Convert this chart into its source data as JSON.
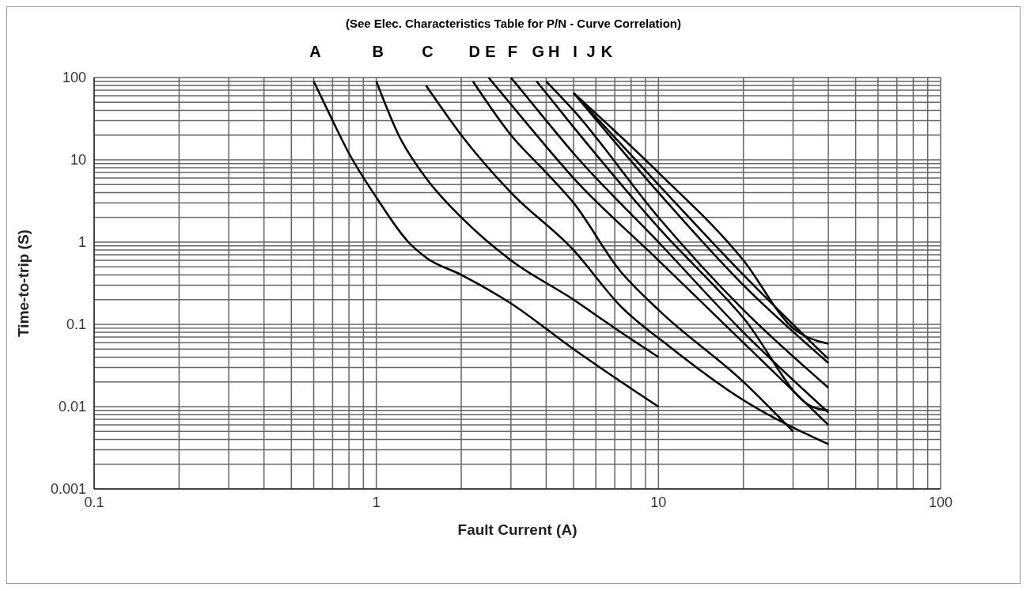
{
  "chart_data": {
    "type": "line",
    "title": "(See Elec. Characteristics Table for P/N - Curve Correlation)",
    "xlabel": "Fault Current (A)",
    "ylabel": "Time-to-trip (S)",
    "log": "xy",
    "grid": true,
    "legend": false,
    "xlim": [
      0.1,
      100
    ],
    "ylim": [
      0.001,
      100
    ],
    "xticks": [
      0.1,
      {
        "value": 0.2,
        "label": null
      },
      {
        "value": 0.3,
        "label": null
      },
      {
        "value": 0.4,
        "label": null
      },
      {
        "value": 0.5,
        "label": null
      },
      {
        "value": 0.6,
        "label": null
      },
      {
        "value": 0.7,
        "label": null
      },
      {
        "value": 0.8,
        "label": null
      },
      {
        "value": 0.9,
        "label": null
      },
      1,
      {
        "value": 2,
        "label": null
      },
      {
        "value": 3,
        "label": null
      },
      {
        "value": 4,
        "label": null
      },
      {
        "value": 5,
        "label": null
      },
      {
        "value": 6,
        "label": null
      },
      {
        "value": 7,
        "label": null
      },
      {
        "value": 8,
        "label": null
      },
      {
        "value": 9,
        "label": null
      },
      10,
      {
        "value": 20,
        "label": null
      },
      {
        "value": 30,
        "label": null
      },
      {
        "value": 40,
        "label": null
      },
      {
        "value": 50,
        "label": null
      },
      {
        "value": 60,
        "label": null
      },
      {
        "value": 70,
        "label": null
      },
      {
        "value": 80,
        "label": null
      },
      {
        "value": 90,
        "label": null
      },
      100
    ],
    "yticks": [
      0.001,
      {
        "value": 0.002,
        "label": null
      },
      {
        "value": 0.003,
        "label": null
      },
      {
        "value": 0.004,
        "label": null
      },
      {
        "value": 0.005,
        "label": null
      },
      {
        "value": 0.006,
        "label": null
      },
      {
        "value": 0.007,
        "label": null
      },
      {
        "value": 0.008,
        "label": null
      },
      {
        "value": 0.009,
        "label": null
      },
      0.01,
      {
        "value": 0.02,
        "label": null
      },
      {
        "value": 0.03,
        "label": null
      },
      {
        "value": 0.04,
        "label": null
      },
      {
        "value": 0.05,
        "label": null
      },
      {
        "value": 0.06,
        "label": null
      },
      {
        "value": 0.07,
        "label": null
      },
      {
        "value": 0.08,
        "label": null
      },
      {
        "value": 0.09,
        "label": null
      },
      0.1,
      {
        "value": 0.2,
        "label": null
      },
      {
        "value": 0.3,
        "label": null
      },
      {
        "value": 0.4,
        "label": null
      },
      {
        "value": 0.5,
        "label": null
      },
      {
        "value": 0.6,
        "label": null
      },
      {
        "value": 0.7,
        "label": null
      },
      {
        "value": 0.8,
        "label": null
      },
      {
        "value": 0.9,
        "label": null
      },
      1,
      {
        "value": 2,
        "label": null
      },
      {
        "value": 3,
        "label": null
      },
      {
        "value": 4,
        "label": null
      },
      {
        "value": 5,
        "label": null
      },
      {
        "value": 6,
        "label": null
      },
      {
        "value": 7,
        "label": null
      },
      {
        "value": 8,
        "label": null
      },
      {
        "value": 9,
        "label": null
      },
      10,
      {
        "value": 20,
        "label": null
      },
      {
        "value": 30,
        "label": null
      },
      {
        "value": 40,
        "label": null
      },
      {
        "value": 50,
        "label": null
      },
      {
        "value": 60,
        "label": null
      },
      {
        "value": 70,
        "label": null
      },
      {
        "value": 80,
        "label": null
      },
      {
        "value": 90,
        "label": null
      },
      100
    ],
    "series": [
      {
        "name": "A",
        "color": "#000000",
        "x": [
          0.6,
          0.7,
          0.8,
          1,
          1.3,
          1.5,
          2,
          3,
          5,
          10
        ],
        "values": [
          90,
          30,
          12,
          3.5,
          1,
          0.65,
          0.4,
          0.18,
          0.05,
          0.01
        ]
      },
      {
        "name": "B",
        "color": "#000000",
        "x": [
          1,
          1.2,
          1.5,
          2,
          3,
          5,
          7,
          10
        ],
        "values": [
          90,
          20,
          6,
          2,
          0.6,
          0.2,
          0.09,
          0.04
        ]
      },
      {
        "name": "C",
        "color": "#000000",
        "x": [
          1.5,
          2,
          3,
          5,
          7.3,
          11,
          20,
          40
        ],
        "values": [
          80,
          20,
          4,
          0.8,
          0.17,
          0.053,
          0.012,
          0.0035
        ]
      },
      {
        "name": "D",
        "color": "#000000",
        "x": [
          2.2,
          3,
          4,
          5,
          7.3,
          10,
          20,
          30
        ],
        "values": [
          90,
          20,
          7,
          3,
          0.45,
          0.15,
          0.02,
          0.005
        ]
      },
      {
        "name": "E",
        "color": "#000000",
        "x": [
          2.5,
          3.5,
          5,
          10,
          20,
          40
        ],
        "values": [
          100,
          25,
          6,
          0.6,
          0.06,
          0.006
        ]
      },
      {
        "name": "F",
        "color": "#000000",
        "x": [
          3,
          4,
          5,
          10,
          20,
          40
        ],
        "values": [
          100,
          30,
          12,
          1,
          0.08,
          0.0085
        ]
      },
      {
        "name": "G",
        "color": "#000000",
        "x": [
          3.7,
          5,
          10,
          20,
          35,
          40
        ],
        "values": [
          90,
          25,
          1.5,
          0.12,
          0.01,
          0.009
        ]
      },
      {
        "name": "H",
        "color": "#000000",
        "x": [
          4,
          5,
          10,
          20,
          40
        ],
        "values": [
          90,
          40,
          2,
          0.15,
          0.017
        ]
      },
      {
        "name": "I",
        "color": "#000000",
        "x": [
          5,
          10,
          20,
          40
        ],
        "values": [
          65,
          4,
          0.3,
          0.034
        ]
      },
      {
        "name": "J",
        "color": "#000000",
        "x": [
          5,
          10,
          20,
          40
        ],
        "values": [
          65,
          5,
          0.4,
          0.038
        ]
      },
      {
        "name": "K",
        "color": "#000000",
        "x": [
          5,
          10,
          20,
          30,
          40
        ],
        "values": [
          65,
          7,
          0.6,
          0.09,
          0.058
        ]
      }
    ]
  }
}
